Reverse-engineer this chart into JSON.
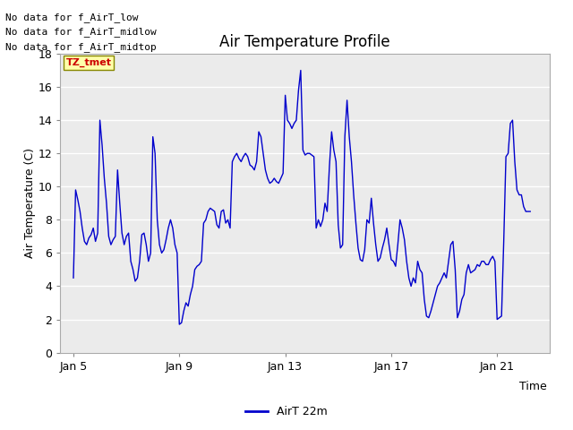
{
  "title": "Air Temperature Profile",
  "xlabel": "Time",
  "ylabel": "Air Temperature (C)",
  "ylim": [
    0,
    18
  ],
  "xlim_days": [
    4.5,
    23.0
  ],
  "line_color": "#0000CC",
  "fig_bg": "#FFFFFF",
  "plot_bg": "#EBEBEB",
  "no_data_texts": [
    "No data for f_AirT_low",
    "No data for f_AirT_midlow",
    "No data for f_AirT_midtop"
  ],
  "tztmet_label": "TZ_tmet",
  "legend_label": "AirT 22m",
  "yticks": [
    0,
    2,
    4,
    6,
    8,
    10,
    12,
    14,
    16,
    18
  ],
  "xtick_labels": [
    "Jan 5",
    "Jan 9",
    "Jan 13",
    "Jan 17",
    "Jan 21"
  ],
  "xtick_days": [
    5,
    9,
    13,
    17,
    21
  ],
  "time_data": [
    5.0,
    5.083,
    5.167,
    5.25,
    5.333,
    5.417,
    5.5,
    5.583,
    5.667,
    5.75,
    5.833,
    5.917,
    6.0,
    6.083,
    6.167,
    6.25,
    6.333,
    6.417,
    6.5,
    6.583,
    6.667,
    6.75,
    6.833,
    6.917,
    7.0,
    7.083,
    7.167,
    7.25,
    7.333,
    7.417,
    7.5,
    7.583,
    7.667,
    7.75,
    7.833,
    7.917,
    8.0,
    8.083,
    8.167,
    8.25,
    8.333,
    8.417,
    8.5,
    8.583,
    8.667,
    8.75,
    8.833,
    8.917,
    9.0,
    9.083,
    9.167,
    9.25,
    9.333,
    9.417,
    9.5,
    9.583,
    9.667,
    9.75,
    9.833,
    9.917,
    10.0,
    10.083,
    10.167,
    10.25,
    10.333,
    10.417,
    10.5,
    10.583,
    10.667,
    10.75,
    10.833,
    10.917,
    11.0,
    11.083,
    11.167,
    11.25,
    11.333,
    11.417,
    11.5,
    11.583,
    11.667,
    11.75,
    11.833,
    11.917,
    12.0,
    12.083,
    12.167,
    12.25,
    12.333,
    12.417,
    12.5,
    12.583,
    12.667,
    12.75,
    12.833,
    12.917,
    13.0,
    13.083,
    13.167,
    13.25,
    13.333,
    13.417,
    13.5,
    13.583,
    13.667,
    13.75,
    13.833,
    13.917,
    14.0,
    14.083,
    14.167,
    14.25,
    14.333,
    14.417,
    14.5,
    14.583,
    14.667,
    14.75,
    14.833,
    14.917,
    15.0,
    15.083,
    15.167,
    15.25,
    15.333,
    15.417,
    15.5,
    15.583,
    15.667,
    15.75,
    15.833,
    15.917,
    16.0,
    16.083,
    16.167,
    16.25,
    16.333,
    16.417,
    16.5,
    16.583,
    16.667,
    16.75,
    16.833,
    16.917,
    17.0,
    17.083,
    17.167,
    17.25,
    17.333,
    17.417,
    17.5,
    17.583,
    17.667,
    17.75,
    17.833,
    17.917,
    18.0,
    18.083,
    18.167,
    18.25,
    18.333,
    18.417,
    18.5,
    18.583,
    18.667,
    18.75,
    18.833,
    18.917,
    19.0,
    19.083,
    19.167,
    19.25,
    19.333,
    19.417,
    19.5,
    19.583,
    19.667,
    19.75,
    19.833,
    19.917,
    20.0,
    20.083,
    20.167,
    20.25,
    20.333,
    20.417,
    20.5,
    20.583,
    20.667,
    20.75,
    20.833,
    20.917,
    21.0,
    21.083,
    21.167,
    21.25,
    21.333,
    21.417,
    21.5,
    21.583,
    21.667,
    21.75,
    21.833,
    21.917,
    22.0,
    22.083,
    22.167,
    22.25
  ],
  "temp_data": [
    4.5,
    9.8,
    9.2,
    8.5,
    7.5,
    6.7,
    6.5,
    6.9,
    7.1,
    7.5,
    6.7,
    7.2,
    14.0,
    12.5,
    10.5,
    9.0,
    7.0,
    6.5,
    6.8,
    7.0,
    11.0,
    9.0,
    7.2,
    6.5,
    7.0,
    7.2,
    5.5,
    5.0,
    4.3,
    4.5,
    5.5,
    7.1,
    7.2,
    6.5,
    5.5,
    6.0,
    13.0,
    12.0,
    8.0,
    6.5,
    6.0,
    6.2,
    6.8,
    7.5,
    8.0,
    7.5,
    6.5,
    6.0,
    1.7,
    1.8,
    2.5,
    3.0,
    2.8,
    3.5,
    4.0,
    5.0,
    5.2,
    5.3,
    5.5,
    7.8,
    8.0,
    8.5,
    8.7,
    8.6,
    8.5,
    7.7,
    7.5,
    8.5,
    8.6,
    7.8,
    8.0,
    7.5,
    11.5,
    11.8,
    12.0,
    11.7,
    11.5,
    11.8,
    12.0,
    11.8,
    11.3,
    11.2,
    11.0,
    11.5,
    13.3,
    13.0,
    12.0,
    11.0,
    10.5,
    10.2,
    10.3,
    10.5,
    10.3,
    10.2,
    10.5,
    10.8,
    15.5,
    14.0,
    13.8,
    13.5,
    13.8,
    14.0,
    15.8,
    17.0,
    12.2,
    11.9,
    12.0,
    12.0,
    11.9,
    11.8,
    7.5,
    8.0,
    7.6,
    8.0,
    9.0,
    8.5,
    11.2,
    13.3,
    12.2,
    11.5,
    7.7,
    6.3,
    6.5,
    13.0,
    15.2,
    13.0,
    11.5,
    9.5,
    7.8,
    6.3,
    5.6,
    5.5,
    6.2,
    8.0,
    7.8,
    9.3,
    7.8,
    6.5,
    5.5,
    5.7,
    6.3,
    6.8,
    7.5,
    6.5,
    5.6,
    5.5,
    5.2,
    6.5,
    8.0,
    7.5,
    6.8,
    5.5,
    4.5,
    4.0,
    4.5,
    4.2,
    5.5,
    5.0,
    4.8,
    3.2,
    2.2,
    2.1,
    2.5,
    3.0,
    3.5,
    4.0,
    4.2,
    4.5,
    4.8,
    4.5,
    5.5,
    6.5,
    6.7,
    5.0,
    2.1,
    2.5,
    3.2,
    3.5,
    4.8,
    5.3,
    4.8,
    4.9,
    5.0,
    5.3,
    5.2,
    5.5,
    5.5,
    5.3,
    5.3,
    5.6,
    5.8,
    5.5,
    2.0,
    2.1,
    2.2,
    6.7,
    11.8,
    12.0,
    13.8,
    14.0,
    11.5,
    9.8,
    9.5,
    9.5,
    8.8,
    8.5,
    8.5,
    8.5
  ]
}
